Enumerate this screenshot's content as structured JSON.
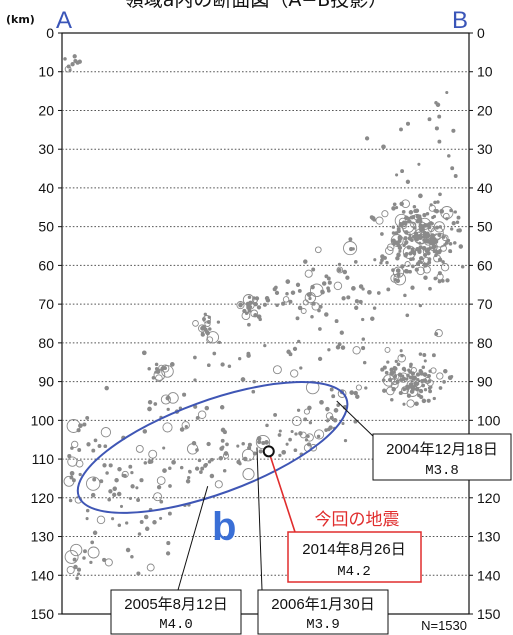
{
  "title": "領域a内の断面図（A−B投影）",
  "unit_label": "(km)",
  "end_left": "A",
  "end_right": "B",
  "region_label": "b",
  "count_label": "N=1530",
  "colors": {
    "accent": "#3a55b8",
    "highlight": "#e02d2d",
    "ellipse": "#3f56b5",
    "quake": "#8a8a8a"
  },
  "chart_data": {
    "type": "scatter",
    "title": "領域a内の断面図（A−B投影）",
    "ylabel": "(km)",
    "ylim": [
      0,
      150
    ],
    "yticks": [
      0,
      10,
      20,
      30,
      40,
      50,
      60,
      70,
      80,
      90,
      100,
      110,
      120,
      130,
      140,
      150
    ],
    "xlim": [
      0,
      100
    ],
    "grid": true,
    "count": 1530,
    "highlight": {
      "x": 50.8,
      "y": 108
    },
    "callouts": [
      {
        "name": "callout-2004",
        "date": "2004年12月18日",
        "mag": "M3.8",
        "x": 67.5,
        "y": 95,
        "red": false
      },
      {
        "name": "callout-2014",
        "date": "2014年8月26日",
        "mag": "M4.2",
        "x": 50.8,
        "y": 108,
        "red": true,
        "heading": "今回の地震"
      },
      {
        "name": "callout-2005",
        "date": "2005年8月12日",
        "mag": "M4.0",
        "x": 35.8,
        "y": 117,
        "red": false
      },
      {
        "name": "callout-2006",
        "date": "2006年1月30日",
        "mag": "M3.9",
        "x": 47.9,
        "y": 107,
        "red": false
      }
    ],
    "ellipse": {
      "cx": 37,
      "cy": 107,
      "rx": 35,
      "ry": 12,
      "rotate": -20
    },
    "clusters": [
      {
        "x": 88,
        "y": 53,
        "sx": 4.5,
        "sy": 5,
        "n": 230
      },
      {
        "x": 86,
        "y": 90,
        "sx": 3.5,
        "sy": 3,
        "n": 110
      },
      {
        "x": 47,
        "y": 71,
        "sx": 1.5,
        "sy": 1.5,
        "n": 25
      },
      {
        "x": 36,
        "y": 77,
        "sx": 1.4,
        "sy": 2,
        "n": 22
      },
      {
        "x": 2,
        "y": 8,
        "sx": 2,
        "sy": 1.2,
        "n": 14
      },
      {
        "x": 70,
        "y": 94,
        "sx": 3,
        "sy": 2,
        "n": 14
      },
      {
        "x": 65,
        "y": 100,
        "sx": 4,
        "sy": 2,
        "n": 18
      },
      {
        "x": 57,
        "y": 104,
        "sx": 5,
        "sy": 2.5,
        "n": 22
      },
      {
        "x": 45,
        "y": 108,
        "sx": 5,
        "sy": 2.5,
        "n": 20
      },
      {
        "x": 34,
        "y": 113,
        "sx": 4,
        "sy": 3,
        "n": 18
      },
      {
        "x": 24,
        "y": 87,
        "sx": 1.5,
        "sy": 2,
        "n": 12
      },
      {
        "x": 20,
        "y": 124,
        "sx": 4,
        "sy": 6,
        "n": 22
      },
      {
        "x": 6,
        "y": 107,
        "sx": 3,
        "sy": 4,
        "n": 12
      },
      {
        "x": 5,
        "y": 137,
        "sx": 3,
        "sy": 2,
        "n": 10
      },
      {
        "x": 65,
        "y": 64,
        "sx": 6,
        "sy": 4,
        "n": 35
      },
      {
        "x": 55,
        "y": 68,
        "sx": 5,
        "sy": 3,
        "n": 20
      },
      {
        "x": 90,
        "y": 25,
        "sx": 6,
        "sy": 8,
        "n": 18
      },
      {
        "x": 30,
        "y": 97,
        "sx": 5,
        "sy": 4,
        "n": 15
      },
      {
        "x": 14,
        "y": 116,
        "sx": 3,
        "sy": 4,
        "n": 12
      }
    ],
    "scatter_n": 140
  }
}
